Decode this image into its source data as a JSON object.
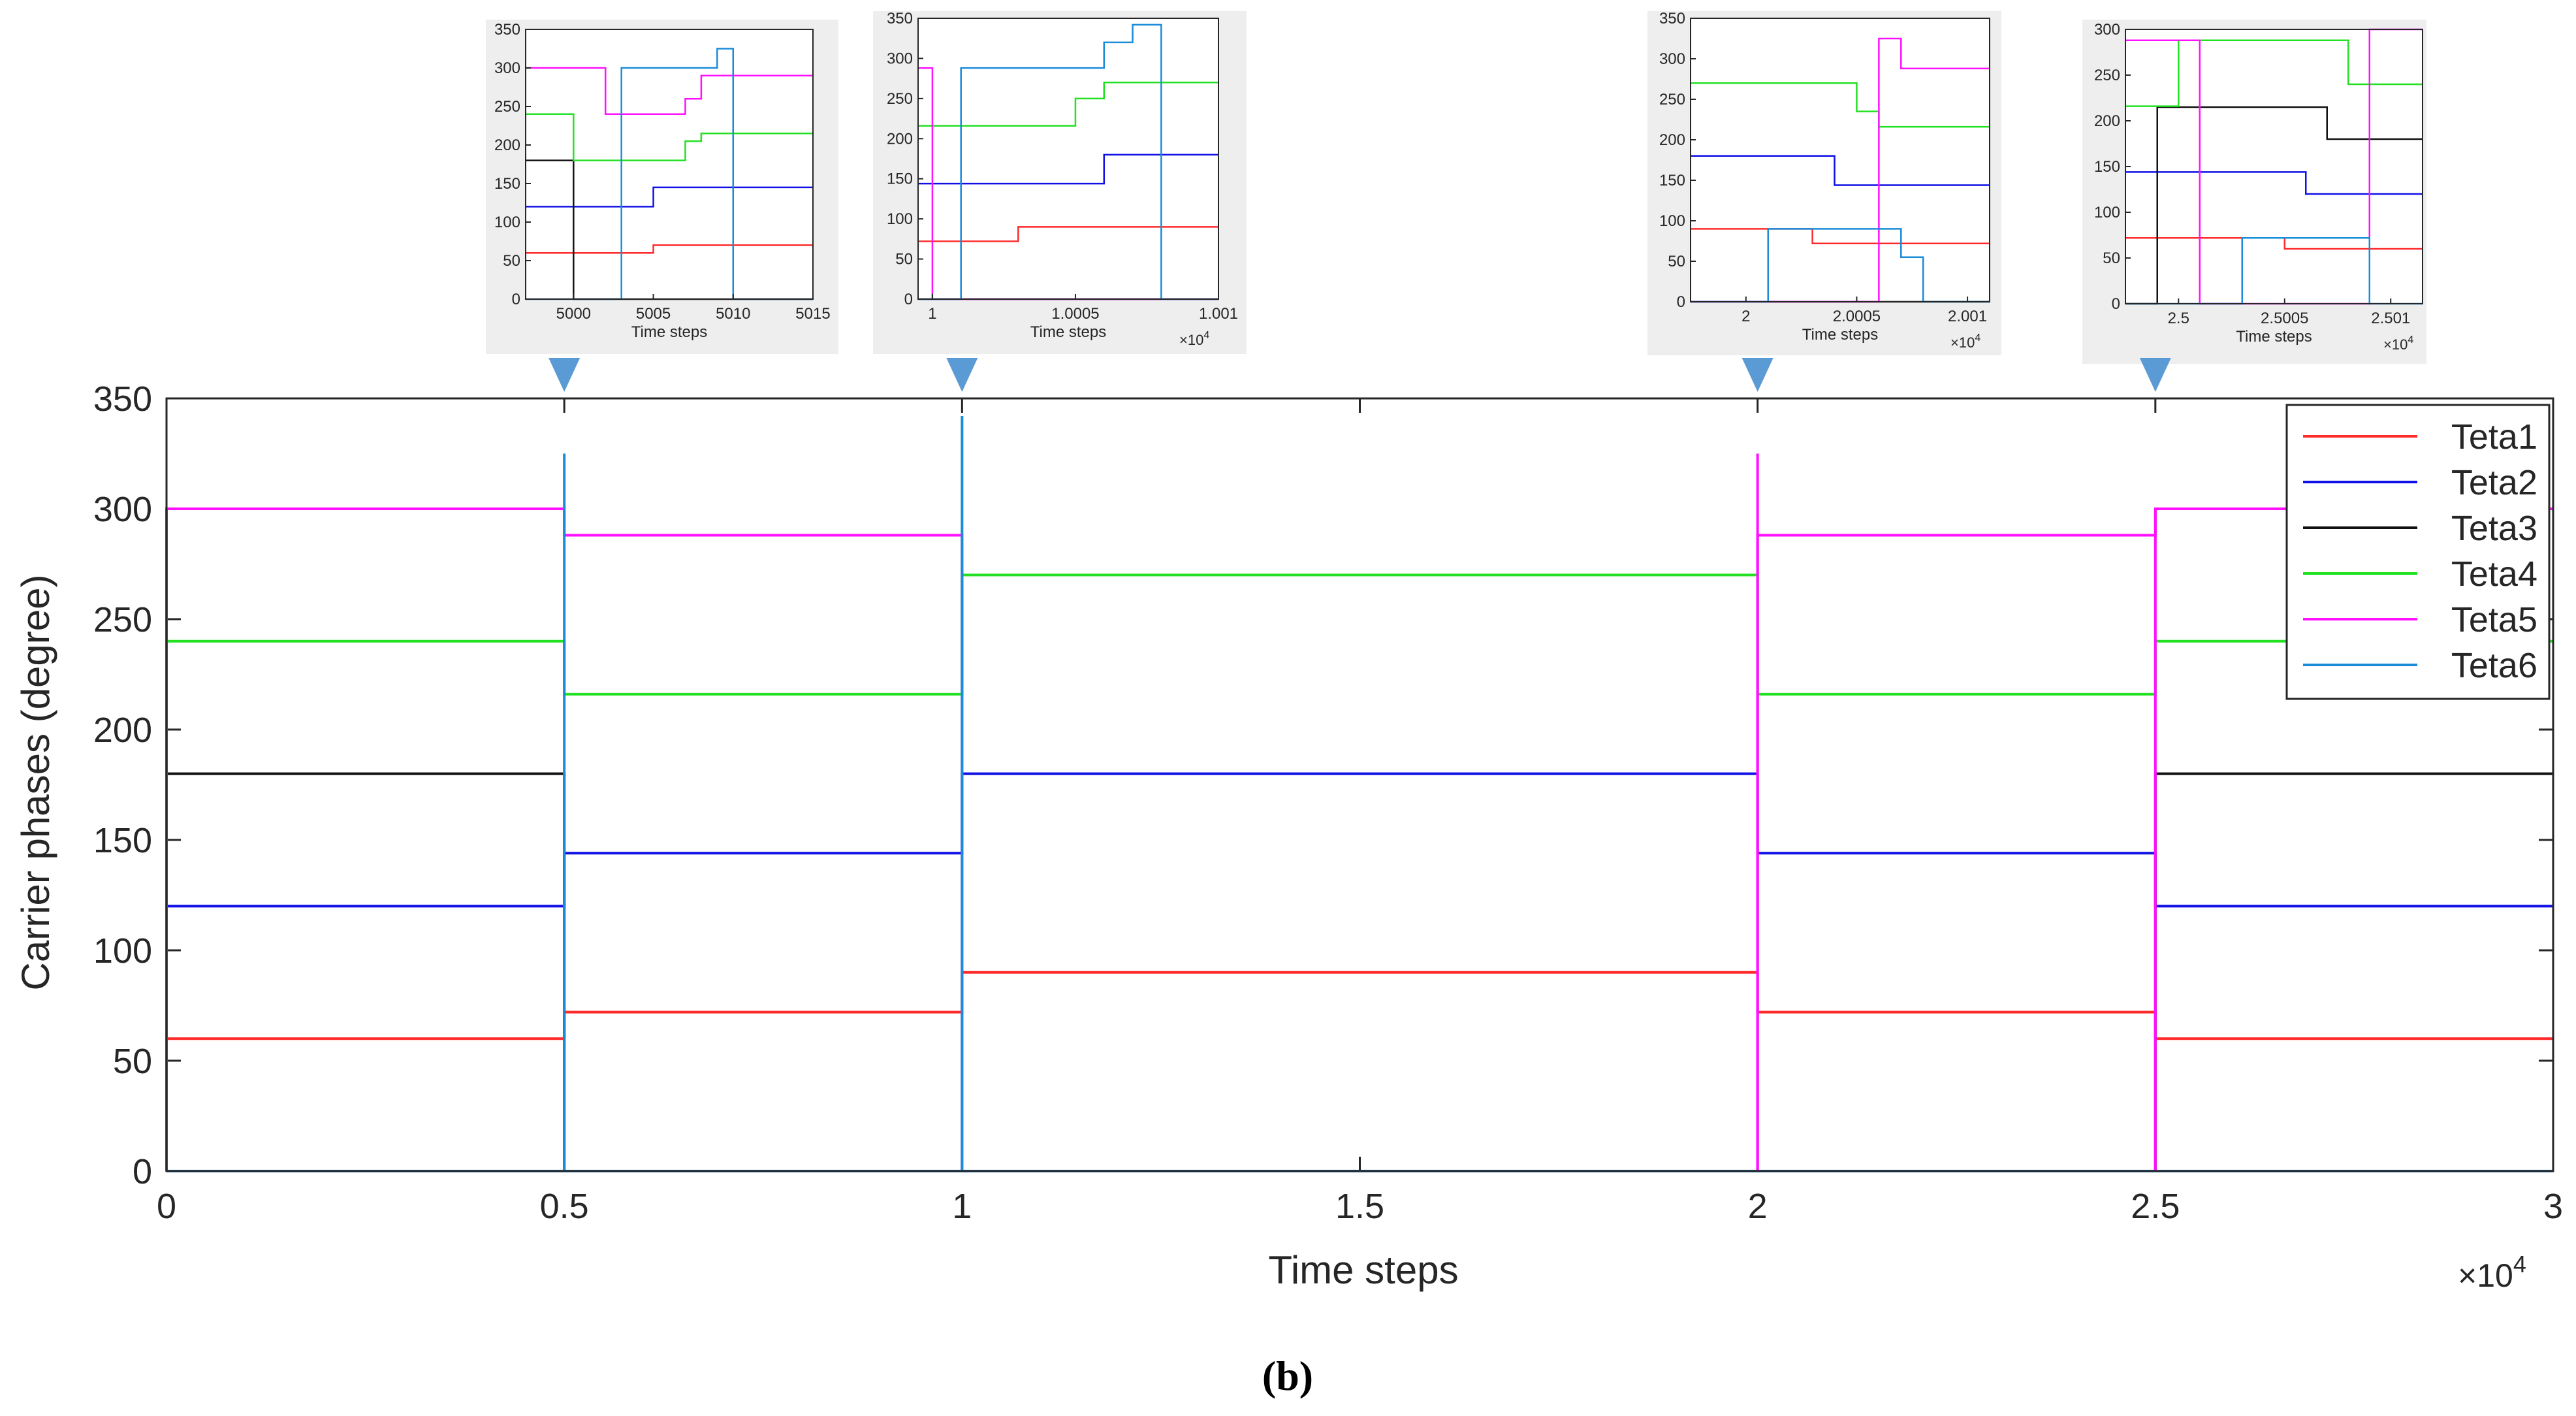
{
  "colors": {
    "Teta1": "#ff2b2b",
    "Teta2": "#1010e6",
    "Teta3": "#111111",
    "Teta4": "#22e022",
    "Teta5": "#ff10ff",
    "Teta6": "#1a8cd8",
    "arrow": "#5b9bd5",
    "inset_bg": "#eeeeee"
  },
  "caption": "(b)",
  "chart_data": {
    "type": "line",
    "subtype": "step",
    "title": "",
    "xlabel": "Time steps",
    "ylabel": "Carrier phases (degree)",
    "x_multiplier_label": "×10",
    "x_multiplier_exp": "4",
    "xlim": [
      0,
      3
    ],
    "ylim": [
      0,
      350
    ],
    "xticks": [
      0,
      0.5,
      1,
      1.5,
      2,
      2.5,
      3
    ],
    "xtick_labels": [
      "0",
      "0.5",
      "1",
      "1.5",
      "2",
      "2.5",
      "3"
    ],
    "yticks": [
      0,
      50,
      100,
      150,
      200,
      250,
      300,
      350
    ],
    "ytick_labels": [
      "0",
      "50",
      "100",
      "150",
      "200",
      "250",
      "300",
      "350"
    ],
    "legend_position": "top-right",
    "segments": [
      [
        0,
        0.5
      ],
      [
        0.5,
        1
      ],
      [
        1,
        2
      ],
      [
        2,
        2.5
      ],
      [
        2.5,
        3
      ]
    ],
    "series": [
      {
        "name": "Teta1",
        "values": [
          60,
          72,
          90,
          72,
          60
        ]
      },
      {
        "name": "Teta2",
        "values": [
          120,
          144,
          180,
          144,
          120
        ]
      },
      {
        "name": "Teta3",
        "values": [
          180,
          0,
          0,
          0,
          180
        ]
      },
      {
        "name": "Teta4",
        "values": [
          240,
          216,
          270,
          216,
          240
        ]
      },
      {
        "name": "Teta5",
        "values": [
          300,
          288,
          0,
          288,
          300
        ]
      },
      {
        "name": "Teta6",
        "values": [
          0,
          0,
          0,
          0,
          0
        ]
      }
    ],
    "spikes": [
      {
        "x": 0.5,
        "name": "Teta6",
        "value": 325
      },
      {
        "x": 1,
        "name": "Teta6",
        "value": 342
      },
      {
        "x": 2,
        "name": "Teta5",
        "value": 325
      },
      {
        "x": 2.5,
        "name": "Teta5",
        "value": 300
      }
    ],
    "insets": [
      {
        "points_to_x": 0.5,
        "xlabel": "Time steps",
        "xlim": [
          4997,
          5015
        ],
        "ylim": [
          0,
          350
        ],
        "xticks": [
          5000,
          5005,
          5010,
          5015
        ],
        "xtick_labels": [
          "5000",
          "5005",
          "5010",
          "5015"
        ],
        "yticks": [
          0,
          50,
          100,
          150,
          200,
          250,
          300,
          350
        ],
        "ytick_labels": [
          "0",
          "50",
          "100",
          "150",
          "200",
          "250",
          "300",
          "350"
        ],
        "multiplier": "",
        "lines": [
          {
            "name": "Teta1",
            "points": [
              [
                4997,
                60
              ],
              [
                5005,
                60
              ],
              [
                5005,
                70
              ],
              [
                5015,
                70
              ]
            ]
          },
          {
            "name": "Teta2",
            "points": [
              [
                4997,
                120
              ],
              [
                5005,
                120
              ],
              [
                5005,
                145
              ],
              [
                5015,
                145
              ]
            ]
          },
          {
            "name": "Teta3",
            "points": [
              [
                4997,
                180
              ],
              [
                5000,
                180
              ],
              [
                5000,
                0
              ],
              [
                5015,
                0
              ]
            ]
          },
          {
            "name": "Teta4",
            "points": [
              [
                4997,
                240
              ],
              [
                5000,
                240
              ],
              [
                5000,
                180
              ],
              [
                5007,
                180
              ],
              [
                5007,
                205
              ],
              [
                5008,
                205
              ],
              [
                5008,
                215
              ],
              [
                5015,
                215
              ]
            ]
          },
          {
            "name": "Teta5",
            "points": [
              [
                4997,
                300
              ],
              [
                5002,
                300
              ],
              [
                5002,
                240
              ],
              [
                5007,
                240
              ],
              [
                5007,
                260
              ],
              [
                5008,
                260
              ],
              [
                5008,
                290
              ],
              [
                5015,
                290
              ]
            ]
          },
          {
            "name": "Teta6",
            "points": [
              [
                4997,
                0
              ],
              [
                5003,
                0
              ],
              [
                5003,
                300
              ],
              [
                5009,
                300
              ],
              [
                5009,
                325
              ],
              [
                5010,
                325
              ],
              [
                5010,
                0
              ],
              [
                5015,
                0
              ]
            ]
          }
        ]
      },
      {
        "points_to_x": 1,
        "xlabel": "Time steps",
        "xlim": [
          0.99995,
          1.001
        ],
        "ylim": [
          0,
          350
        ],
        "xticks": [
          1,
          1.0005,
          1.001
        ],
        "xtick_labels": [
          "1",
          "1.0005",
          "1.001"
        ],
        "yticks": [
          0,
          50,
          100,
          150,
          200,
          250,
          300,
          350
        ],
        "ytick_labels": [
          "0",
          "50",
          "100",
          "150",
          "200",
          "250",
          "300",
          "350"
        ],
        "multiplier": "×10",
        "multiplier_exp": "4",
        "lines": [
          {
            "name": "Teta1",
            "points": [
              [
                0.99995,
                72
              ],
              [
                1.0003,
                72
              ],
              [
                1.0003,
                90
              ],
              [
                1.001,
                90
              ]
            ]
          },
          {
            "name": "Teta2",
            "points": [
              [
                0.99995,
                144
              ],
              [
                1.0006,
                144
              ],
              [
                1.0006,
                180
              ],
              [
                1.001,
                180
              ]
            ]
          },
          {
            "name": "Teta3",
            "points": [
              [
                0.99995,
                0
              ],
              [
                1.001,
                0
              ]
            ]
          },
          {
            "name": "Teta4",
            "points": [
              [
                0.99995,
                216
              ],
              [
                1.0005,
                216
              ],
              [
                1.0005,
                250
              ],
              [
                1.0006,
                250
              ],
              [
                1.0006,
                270
              ],
              [
                1.001,
                270
              ]
            ]
          },
          {
            "name": "Teta5",
            "points": [
              [
                0.99995,
                288
              ],
              [
                1.0,
                288
              ],
              [
                1.0,
                0
              ],
              [
                1.001,
                0
              ]
            ]
          },
          {
            "name": "Teta6",
            "points": [
              [
                0.99995,
                0
              ],
              [
                1.0001,
                0
              ],
              [
                1.0001,
                288
              ],
              [
                1.0006,
                288
              ],
              [
                1.0006,
                320
              ],
              [
                1.0007,
                320
              ],
              [
                1.0007,
                342
              ],
              [
                1.0008,
                342
              ],
              [
                1.0008,
                0
              ],
              [
                1.001,
                0
              ]
            ]
          }
        ]
      },
      {
        "points_to_x": 2,
        "xlabel": "Time steps",
        "xlim": [
          1.99975,
          2.0011
        ],
        "ylim": [
          0,
          350
        ],
        "xticks": [
          2,
          2.0005,
          2.001
        ],
        "xtick_labels": [
          "2",
          "2.0005",
          "2.001"
        ],
        "yticks": [
          0,
          50,
          100,
          150,
          200,
          250,
          300,
          350
        ],
        "ytick_labels": [
          "0",
          "50",
          "100",
          "150",
          "200",
          "250",
          "300",
          "350"
        ],
        "multiplier": "×10",
        "multiplier_exp": "4",
        "lines": [
          {
            "name": "Teta1",
            "points": [
              [
                1.99975,
                90
              ],
              [
                2.0003,
                90
              ],
              [
                2.0003,
                72
              ],
              [
                2.0011,
                72
              ]
            ]
          },
          {
            "name": "Teta2",
            "points": [
              [
                1.99975,
                180
              ],
              [
                2.0004,
                180
              ],
              [
                2.0004,
                144
              ],
              [
                2.0011,
                144
              ]
            ]
          },
          {
            "name": "Teta3",
            "points": [
              [
                1.99975,
                0
              ],
              [
                2.0011,
                0
              ]
            ]
          },
          {
            "name": "Teta4",
            "points": [
              [
                1.99975,
                270
              ],
              [
                2.0005,
                270
              ],
              [
                2.0005,
                235
              ],
              [
                2.0006,
                235
              ],
              [
                2.0006,
                216
              ],
              [
                2.0011,
                216
              ]
            ]
          },
          {
            "name": "Teta5",
            "points": [
              [
                1.99975,
                0
              ],
              [
                2.0006,
                0
              ],
              [
                2.0006,
                325
              ],
              [
                2.0007,
                325
              ],
              [
                2.0007,
                288
              ],
              [
                2.0011,
                288
              ]
            ]
          },
          {
            "name": "Teta6",
            "points": [
              [
                1.99975,
                0
              ],
              [
                2.0001,
                0
              ],
              [
                2.0001,
                90
              ],
              [
                2.0007,
                90
              ],
              [
                2.0007,
                55
              ],
              [
                2.0008,
                55
              ],
              [
                2.0008,
                0
              ],
              [
                2.0011,
                0
              ]
            ]
          }
        ]
      },
      {
        "points_to_x": 2.5,
        "xlabel": "Time steps",
        "xlim": [
          2.49975,
          2.50115
        ],
        "ylim": [
          0,
          300
        ],
        "xticks": [
          2.5,
          2.5005,
          2.501
        ],
        "xtick_labels": [
          "2.5",
          "2.5005",
          "2.501"
        ],
        "yticks": [
          0,
          50,
          100,
          150,
          200,
          250,
          300
        ],
        "ytick_labels": [
          "0",
          "50",
          "100",
          "150",
          "200",
          "250",
          "300"
        ],
        "multiplier": "×10",
        "multiplier_exp": "4",
        "lines": [
          {
            "name": "Teta1",
            "points": [
              [
                2.49975,
                72
              ],
              [
                2.5005,
                72
              ],
              [
                2.5005,
                60
              ],
              [
                2.50115,
                60
              ]
            ]
          },
          {
            "name": "Teta2",
            "points": [
              [
                2.49975,
                144
              ],
              [
                2.5006,
                144
              ],
              [
                2.5006,
                120
              ],
              [
                2.50115,
                120
              ]
            ]
          },
          {
            "name": "Teta3",
            "points": [
              [
                2.49975,
                0
              ],
              [
                2.4999,
                0
              ],
              [
                2.4999,
                215
              ],
              [
                2.5007,
                215
              ],
              [
                2.5007,
                180
              ],
              [
                2.50115,
                180
              ]
            ]
          },
          {
            "name": "Teta4",
            "points": [
              [
                2.49975,
                216
              ],
              [
                2.5,
                216
              ],
              [
                2.5,
                288
              ],
              [
                2.5008,
                288
              ],
              [
                2.5008,
                240
              ],
              [
                2.50115,
                240
              ]
            ]
          },
          {
            "name": "Teta5",
            "points": [
              [
                2.49975,
                288
              ],
              [
                2.5001,
                288
              ],
              [
                2.5001,
                0
              ],
              [
                2.5009,
                0
              ],
              [
                2.5009,
                300
              ],
              [
                2.50115,
                300
              ]
            ]
          },
          {
            "name": "Teta6",
            "points": [
              [
                2.49975,
                0
              ],
              [
                2.5003,
                0
              ],
              [
                2.5003,
                72
              ],
              [
                2.5009,
                72
              ],
              [
                2.5009,
                0
              ],
              [
                2.50115,
                0
              ]
            ]
          }
        ]
      }
    ]
  }
}
